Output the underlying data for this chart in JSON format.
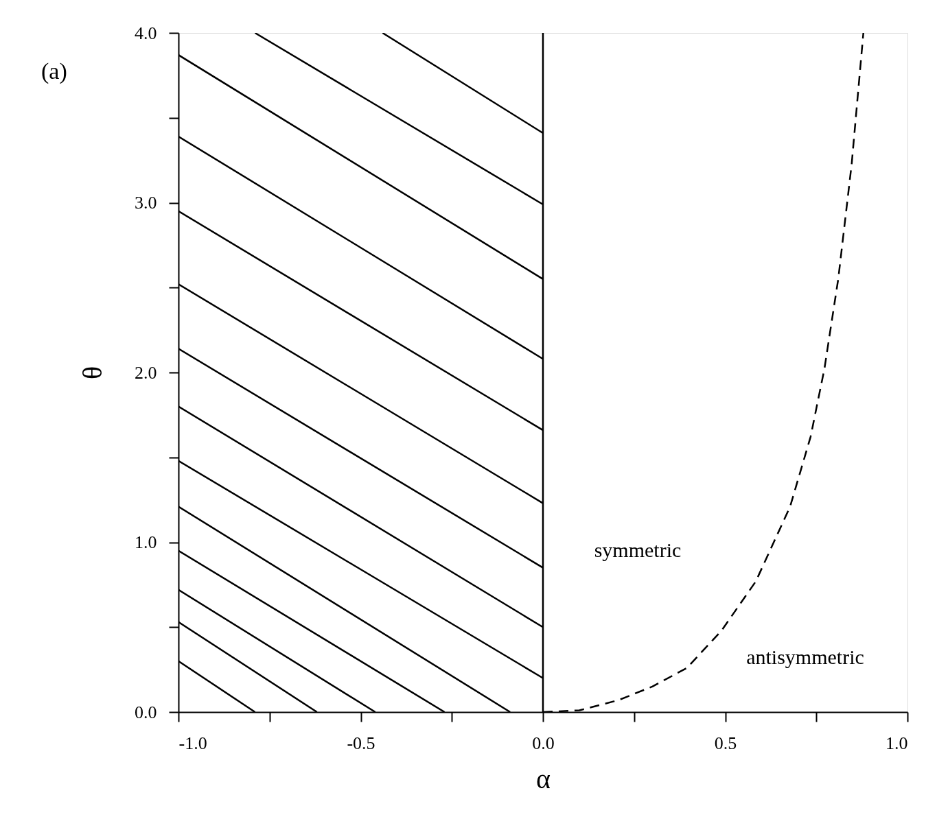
{
  "chart_data": {
    "type": "line",
    "title": "(a)",
    "xlabel": "α",
    "ylabel": "θ",
    "xlim": [
      -1,
      1
    ],
    "ylim": [
      0,
      4
    ],
    "xticks": [
      {
        "value": -1,
        "label": "-1.0"
      },
      {
        "value": -0.75,
        "label": null
      },
      {
        "value": -0.5,
        "label": "-0.5"
      },
      {
        "value": -0.25,
        "label": null
      },
      {
        "value": 0,
        "label": "0.0"
      },
      {
        "value": 0.25,
        "label": null
      },
      {
        "value": 0.5,
        "label": "0.5"
      },
      {
        "value": 0.75,
        "label": null
      },
      {
        "value": 1,
        "label": "1.0"
      }
    ],
    "yticks": [
      {
        "value": 0,
        "label": "0.0"
      },
      {
        "value": 0.5,
        "label": null
      },
      {
        "value": 1,
        "label": "1.0"
      },
      {
        "value": 1.5,
        "label": null
      },
      {
        "value": 2,
        "label": "2.0"
      },
      {
        "value": 2.5,
        "label": null
      },
      {
        "value": 3,
        "label": "3.0"
      },
      {
        "value": 3.5,
        "label": null
      },
      {
        "value": 4,
        "label": "4.0"
      }
    ],
    "marker": "none",
    "ref_lines": [
      {
        "axis": "x",
        "value": 0,
        "color": "#000000",
        "line_style": "solid"
      }
    ],
    "annotations": [
      "symmetric",
      "antisymmetric"
    ],
    "series": [
      {
        "color": "#000000",
        "line_style": "dashed",
        "x": [
          0,
          0.1,
          0.207,
          0.3,
          0.395,
          0.49,
          0.584,
          0.678,
          0.734,
          0.772,
          0.81,
          0.847,
          0.879
        ],
        "values": [
          0,
          0.01,
          0.07,
          0.15,
          0.26,
          0.48,
          0.77,
          1.21,
          1.62,
          2.02,
          2.55,
          3.23,
          4.0
        ]
      },
      {
        "color": "#000000",
        "line_style": "solid",
        "x": [
          -0.44,
          0
        ],
        "values": [
          4,
          3.41
        ]
      },
      {
        "color": "#000000",
        "line_style": "solid",
        "x": [
          -0.79,
          0
        ],
        "values": [
          4,
          2.99
        ]
      },
      {
        "color": "#000000",
        "line_style": "solid",
        "x": [
          -1,
          0
        ],
        "values": [
          3.87,
          2.55
        ]
      },
      {
        "color": "#000000",
        "line_style": "solid",
        "x": [
          -1,
          0
        ],
        "values": [
          3.39,
          2.08
        ]
      },
      {
        "color": "#000000",
        "line_style": "solid",
        "x": [
          -1,
          0
        ],
        "values": [
          2.95,
          1.66
        ]
      },
      {
        "color": "#000000",
        "line_style": "solid",
        "x": [
          -1,
          0
        ],
        "values": [
          2.52,
          1.23
        ]
      },
      {
        "color": "#000000",
        "line_style": "solid",
        "x": [
          -1,
          0
        ],
        "values": [
          2.14,
          0.85
        ]
      },
      {
        "color": "#000000",
        "line_style": "solid",
        "x": [
          -1,
          0
        ],
        "values": [
          1.8,
          0.5
        ]
      },
      {
        "color": "#000000",
        "line_style": "solid",
        "x": [
          -1,
          0
        ],
        "values": [
          1.48,
          0.2
        ]
      },
      {
        "color": "#000000",
        "line_style": "solid",
        "x": [
          -1,
          -0.09
        ],
        "values": [
          1.21,
          0
        ]
      },
      {
        "color": "#000000",
        "line_style": "solid",
        "x": [
          -1,
          -0.27
        ],
        "values": [
          0.95,
          0
        ]
      },
      {
        "color": "#000000",
        "line_style": "solid",
        "x": [
          -1,
          -0.46
        ],
        "values": [
          0.72,
          0
        ]
      },
      {
        "color": "#000000",
        "line_style": "solid",
        "x": [
          -1,
          -0.62
        ],
        "values": [
          0.53,
          0
        ]
      },
      {
        "color": "#000000",
        "line_style": "solid",
        "x": [
          -1,
          -0.79
        ],
        "values": [
          0.3,
          0
        ]
      }
    ]
  }
}
